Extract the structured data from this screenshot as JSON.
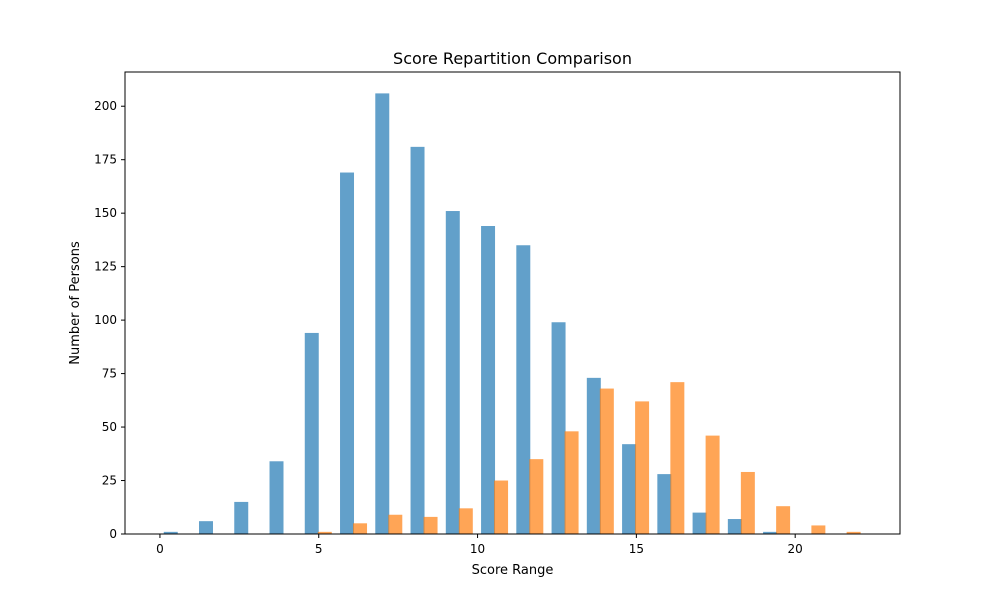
{
  "chart_data": {
    "type": "bar",
    "title": "Score Repartition Comparison",
    "xlabel": "Score Range",
    "ylabel": "Number of Persons",
    "xlim": [
      -1.1,
      23.3
    ],
    "ylim": [
      0,
      216
    ],
    "xticks": [
      0,
      5,
      10,
      15,
      20
    ],
    "yticks": [
      0,
      25,
      50,
      75,
      100,
      125,
      150,
      175,
      200
    ],
    "bin_width": 0.44,
    "grid": false,
    "series": [
      {
        "color": "#1f77b4",
        "opacity": 0.7,
        "bins": [
          {
            "x": 0.34,
            "y": 1
          },
          {
            "x": 1.45,
            "y": 6
          },
          {
            "x": 2.56,
            "y": 15
          },
          {
            "x": 3.67,
            "y": 34
          },
          {
            "x": 4.78,
            "y": 94
          },
          {
            "x": 5.89,
            "y": 169
          },
          {
            "x": 7.0,
            "y": 206
          },
          {
            "x": 8.11,
            "y": 181
          },
          {
            "x": 9.22,
            "y": 151
          },
          {
            "x": 10.33,
            "y": 144
          },
          {
            "x": 11.44,
            "y": 135
          },
          {
            "x": 12.55,
            "y": 99
          },
          {
            "x": 13.66,
            "y": 73
          },
          {
            "x": 14.77,
            "y": 42
          },
          {
            "x": 15.88,
            "y": 28
          },
          {
            "x": 16.99,
            "y": 10
          },
          {
            "x": 18.1,
            "y": 7
          },
          {
            "x": 19.21,
            "y": 1
          }
        ]
      },
      {
        "color": "#ff7f0e",
        "opacity": 0.7,
        "bins": [
          {
            "x": 5.19,
            "y": 1
          },
          {
            "x": 6.3,
            "y": 5
          },
          {
            "x": 7.41,
            "y": 9
          },
          {
            "x": 8.52,
            "y": 8
          },
          {
            "x": 9.63,
            "y": 12
          },
          {
            "x": 10.74,
            "y": 25
          },
          {
            "x": 11.85,
            "y": 35
          },
          {
            "x": 12.96,
            "y": 48
          },
          {
            "x": 14.07,
            "y": 68
          },
          {
            "x": 15.18,
            "y": 62
          },
          {
            "x": 16.29,
            "y": 71
          },
          {
            "x": 17.4,
            "y": 46
          },
          {
            "x": 18.51,
            "y": 29
          },
          {
            "x": 19.62,
            "y": 13
          },
          {
            "x": 20.73,
            "y": 4
          },
          {
            "x": 21.84,
            "y": 1
          }
        ]
      }
    ]
  }
}
